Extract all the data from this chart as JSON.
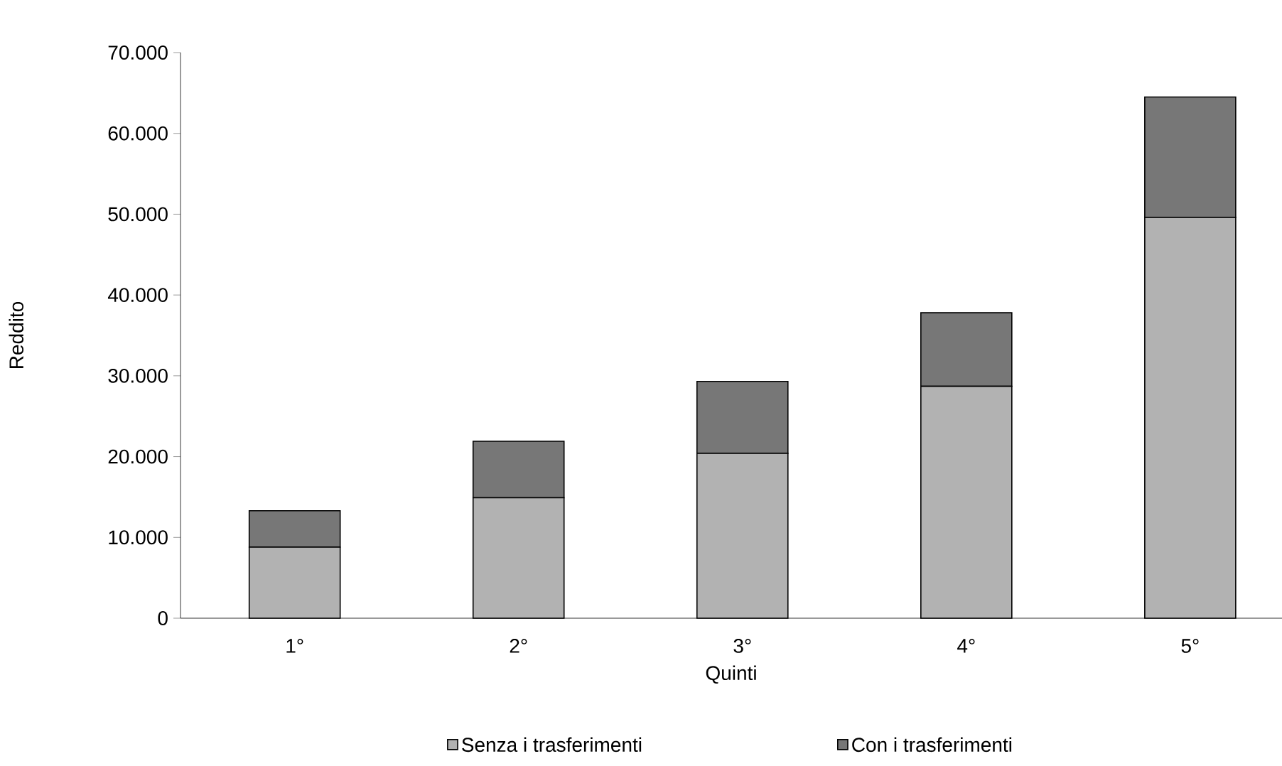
{
  "chart_data": {
    "type": "bar",
    "stacked": true,
    "xlabel": "Quinti",
    "ylabel": "Reddito",
    "categories": [
      "1°",
      "2°",
      "3°",
      "4°",
      "5°"
    ],
    "series": [
      {
        "name": "Senza i trasferimenti",
        "color": "#b2b2b2",
        "values": [
          8800,
          14900,
          20400,
          28700,
          49600
        ]
      },
      {
        "name": "Con i trasferimenti",
        "color": "#777777",
        "values": [
          4500,
          7000,
          8900,
          9100,
          14900
        ]
      }
    ],
    "ylim": [
      0,
      70000
    ],
    "yticks": [
      {
        "value": 0,
        "label": "0"
      },
      {
        "value": 10000,
        "label": "10.000"
      },
      {
        "value": 20000,
        "label": "20.000"
      },
      {
        "value": 30000,
        "label": "30.000"
      },
      {
        "value": 40000,
        "label": "40.000"
      },
      {
        "value": 50000,
        "label": "50.000"
      },
      {
        "value": 60000,
        "label": "60.000"
      },
      {
        "value": 70000,
        "label": "70.000"
      }
    ],
    "legend": "bottom",
    "grid": false
  }
}
